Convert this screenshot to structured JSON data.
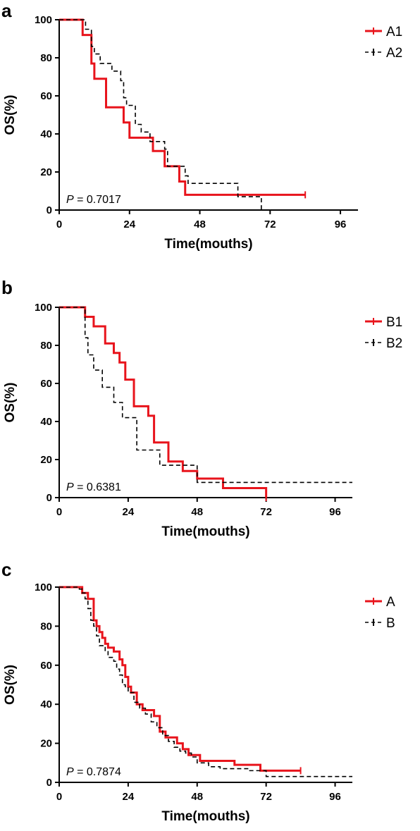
{
  "chart_data": [
    {
      "type": "line",
      "panel_label": "a",
      "xlabel": "Time(mouths)",
      "ylabel": "OS(%)",
      "xlim": [
        0,
        102
      ],
      "ylim": [
        0,
        100
      ],
      "xticks": [
        0,
        24,
        48,
        72,
        96
      ],
      "yticks": [
        0,
        20,
        40,
        60,
        80,
        100
      ],
      "p_prefix": "P",
      "p_value": " = 0.7017",
      "legend_position": "top-right",
      "series": [
        {
          "name": "A1",
          "color": "#e8141c",
          "style": "solid",
          "x": [
            0,
            8,
            11,
            12,
            16,
            22,
            24,
            28,
            32,
            36,
            41,
            43,
            84
          ],
          "y": [
            100,
            92,
            77,
            69,
            54,
            46,
            38,
            38,
            31,
            23,
            15,
            8,
            8
          ]
        },
        {
          "name": "A2",
          "color": "#000000",
          "style": "dashed",
          "x": [
            0,
            9,
            11,
            12,
            14,
            18,
            21,
            22,
            23,
            26,
            28,
            31,
            33,
            36,
            37,
            43,
            44,
            61,
            68,
            69
          ],
          "y": [
            100,
            95,
            86,
            82,
            77,
            73,
            68,
            59,
            55,
            45,
            41,
            36,
            36,
            32,
            23,
            18,
            14,
            7,
            7,
            0
          ]
        }
      ]
    },
    {
      "type": "line",
      "panel_label": "b",
      "xlabel": "Time(mouths)",
      "ylabel": "OS(%)",
      "xlim": [
        0,
        102
      ],
      "ylim": [
        0,
        100
      ],
      "xticks": [
        0,
        24,
        48,
        72,
        96
      ],
      "yticks": [
        0,
        20,
        40,
        60,
        80,
        100
      ],
      "p_prefix": "P",
      "p_value": " = 0.6381",
      "legend_position": "top-right",
      "series": [
        {
          "name": "B1",
          "color": "#e8141c",
          "style": "solid",
          "x": [
            0,
            9,
            12,
            16,
            19,
            21,
            23,
            26,
            31,
            33,
            38,
            43,
            48,
            51,
            57,
            72
          ],
          "y": [
            100,
            95,
            90,
            81,
            76,
            71,
            62,
            48,
            43,
            29,
            19,
            14,
            10,
            10,
            5,
            0
          ],
          "censor_end": true
        },
        {
          "name": "B2",
          "color": "#000000",
          "style": "dashed",
          "x": [
            0,
            9,
            10,
            12,
            15,
            17,
            19,
            22,
            24,
            27,
            33,
            35,
            47,
            48,
            102
          ],
          "y": [
            100,
            84,
            75,
            67,
            58,
            58,
            50,
            42,
            42,
            25,
            25,
            17,
            17,
            8,
            8
          ]
        }
      ]
    },
    {
      "type": "line",
      "panel_label": "c",
      "xlabel": "Time(mouths)",
      "ylabel": "OS(%)",
      "xlim": [
        0,
        102
      ],
      "ylim": [
        0,
        100
      ],
      "xticks": [
        0,
        24,
        48,
        72,
        96
      ],
      "yticks": [
        0,
        20,
        40,
        60,
        80,
        100
      ],
      "p_prefix": "P",
      "p_value": " = 0.7874",
      "legend_position": "top-right",
      "series": [
        {
          "name": "A",
          "color": "#e8141c",
          "style": "solid",
          "x": [
            0,
            8,
            10,
            12,
            13,
            14,
            15,
            16,
            17,
            18,
            19,
            21,
            22,
            23,
            24,
            25,
            27,
            29,
            33,
            35,
            37,
            41,
            43,
            45,
            49,
            61,
            70,
            84
          ],
          "y": [
            100,
            97,
            94,
            83,
            80,
            77,
            74,
            71,
            69,
            69,
            67,
            63,
            60,
            54,
            49,
            46,
            40,
            37,
            34,
            26,
            23,
            20,
            17,
            14,
            11,
            9,
            6,
            6
          ]
        },
        {
          "name": "B",
          "color": "#000000",
          "style": "dashed",
          "x": [
            0,
            7,
            8,
            9,
            10,
            11,
            12,
            13,
            14,
            16,
            17,
            19,
            20,
            21,
            22,
            23,
            24,
            26,
            28,
            30,
            32,
            34,
            36,
            38,
            40,
            42,
            44,
            46,
            48,
            52,
            56,
            66,
            72,
            84,
            102
          ],
          "y": [
            100,
            99,
            97,
            94,
            89,
            83,
            80,
            75,
            70,
            67,
            64,
            62,
            58,
            55,
            50,
            49,
            46,
            41,
            38,
            35,
            31,
            28,
            24,
            21,
            18,
            16,
            15,
            13,
            10,
            8,
            7,
            6,
            3,
            3,
            3
          ]
        }
      ]
    }
  ]
}
